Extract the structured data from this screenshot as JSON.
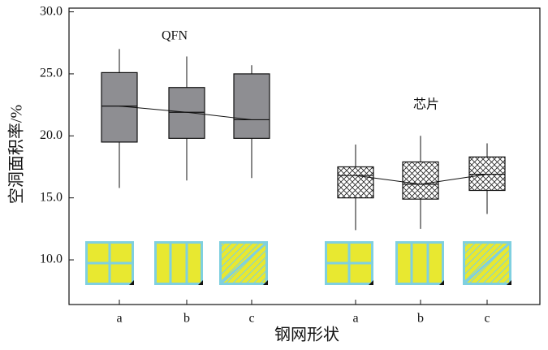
{
  "chart_data": {
    "type": "box",
    "y_label": "空洞面积率/%",
    "x_label": "钢网形状",
    "ylim": [
      6.4,
      30.3
    ],
    "yticks": [
      {
        "value": 10,
        "label": "10.0"
      },
      {
        "value": 15,
        "label": "15.0"
      },
      {
        "value": 20,
        "label": "20.0"
      },
      {
        "value": 25,
        "label": "25.0"
      },
      {
        "value": 30,
        "label": "30.0"
      }
    ],
    "groups": [
      {
        "name": "QFN",
        "color": "#8e8e92",
        "hatch": false,
        "categories": [
          "a",
          "b",
          "c"
        ],
        "boxes": [
          {
            "whislo": 15.8,
            "q1": 19.5,
            "med": 22.4,
            "q3": 25.1,
            "whishi": 27.0
          },
          {
            "whislo": 16.4,
            "q1": 19.8,
            "med": 21.9,
            "q3": 23.9,
            "whishi": 26.4
          },
          {
            "whislo": 16.6,
            "q1": 19.8,
            "med": 21.3,
            "q3": 25.0,
            "whishi": 25.7
          }
        ]
      },
      {
        "name": "芯片",
        "color": "#ffffff",
        "hatch": true,
        "categories": [
          "a",
          "b",
          "c"
        ],
        "boxes": [
          {
            "whislo": 12.4,
            "q1": 15.0,
            "med": 16.8,
            "q3": 17.5,
            "whishi": 19.3
          },
          {
            "whislo": 12.5,
            "q1": 14.9,
            "med": 16.1,
            "q3": 17.9,
            "whishi": 20.0
          },
          {
            "whislo": 13.7,
            "q1": 15.6,
            "med": 16.9,
            "q3": 18.3,
            "whishi": 19.4
          }
        ]
      }
    ]
  }
}
